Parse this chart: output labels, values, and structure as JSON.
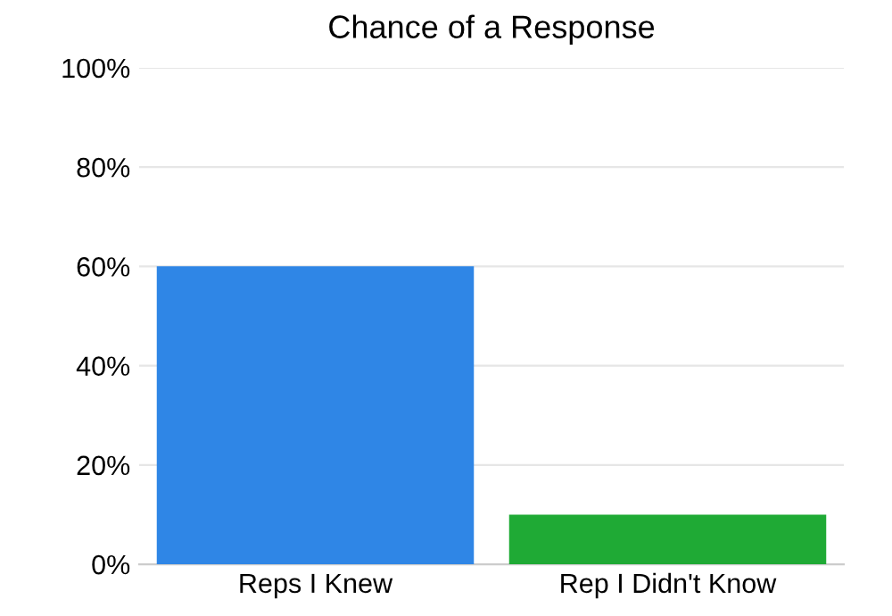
{
  "chart_data": {
    "type": "bar",
    "title": "Chance of a Response",
    "categories": [
      "Reps I Knew",
      "Rep I Didn't Know"
    ],
    "values": [
      60,
      10
    ],
    "colors": [
      "#2f86e6",
      "#1faa35"
    ],
    "ylim": [
      0,
      100
    ],
    "yticks": [
      {
        "value": 0,
        "label": "0%"
      },
      {
        "value": 20,
        "label": "20%"
      },
      {
        "value": 40,
        "label": "40%"
      },
      {
        "value": 60,
        "label": "60%"
      },
      {
        "value": 80,
        "label": "80%"
      },
      {
        "value": 100,
        "label": "100%"
      }
    ],
    "grid": "y",
    "legend": false
  }
}
